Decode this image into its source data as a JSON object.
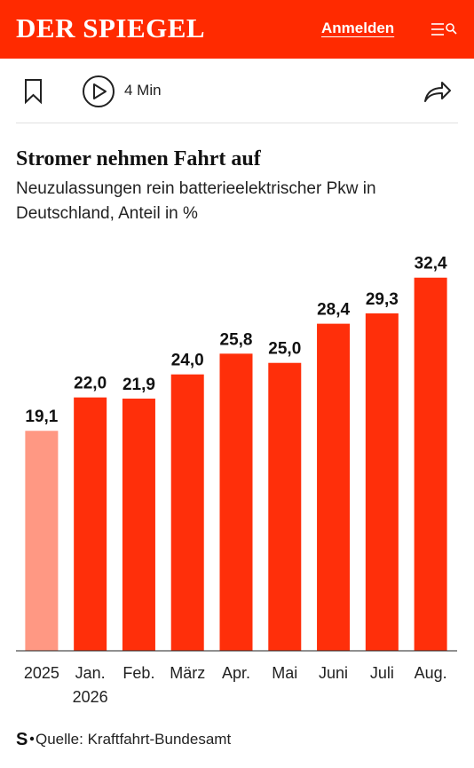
{
  "header": {
    "logo": "DER SPIEGEL",
    "login": "Anmelden"
  },
  "toolbar": {
    "reading_time": "4 Min"
  },
  "chart_data": {
    "type": "bar",
    "title": "Stromer nehmen Fahrt auf",
    "subtitle": "Neuzulassungen rein batterieelektrischer Pkw in Deutschland, Anteil in %",
    "categories": [
      "2025",
      "Jan. 2026",
      "Feb.",
      "März",
      "Apr.",
      "Mai",
      "Juni",
      "Juli",
      "Aug."
    ],
    "values": [
      19.1,
      22.0,
      21.9,
      24.0,
      25.8,
      25.0,
      28.4,
      29.3,
      32.4
    ],
    "value_labels": [
      "19,1",
      "22,0",
      "21,9",
      "24,0",
      "25,8",
      "25,0",
      "28,4",
      "29,3",
      "32,4"
    ],
    "colors": [
      "#ff9883",
      "#ff2f0a",
      "#ff2f0a",
      "#ff2f0a",
      "#ff2f0a",
      "#ff2f0a",
      "#ff2f0a",
      "#ff2f0a",
      "#ff2f0a"
    ],
    "ylim": [
      0,
      35
    ],
    "source_logo": "S",
    "source": "Quelle: Kraftfahrt-Bundesamt"
  }
}
